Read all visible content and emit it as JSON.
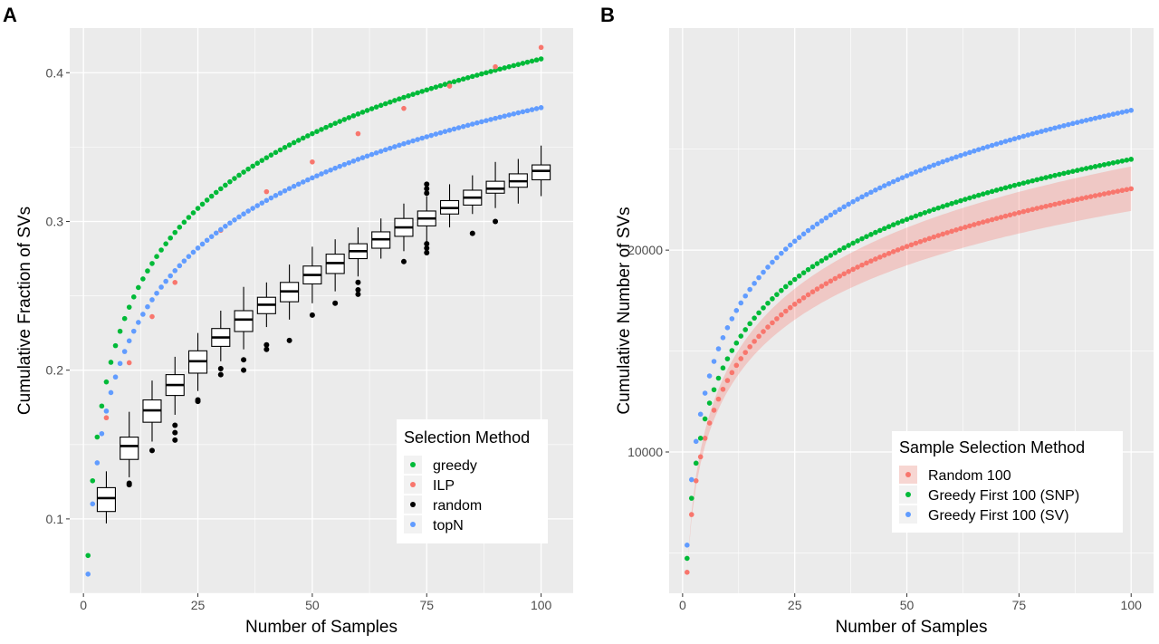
{
  "chart_data": [
    {
      "panel": "A",
      "type": "scatter",
      "title": "",
      "xlabel": "Number of Samples",
      "ylabel": "Cumulative Fraction of SVs",
      "xlim": [
        -3,
        107
      ],
      "ylim": [
        0.05,
        0.43
      ],
      "xticks": [
        0,
        25,
        50,
        75,
        100
      ],
      "yticks": [
        0.1,
        0.2,
        0.3,
        0.4
      ],
      "grid": true,
      "legend": {
        "title": "Selection Method",
        "placement": "bottom-right",
        "entries": [
          {
            "label": "greedy",
            "color": "#00ba38"
          },
          {
            "label": "ILP",
            "color": "#f8766d"
          },
          {
            "label": "random",
            "color": "#000000"
          },
          {
            "label": "topN",
            "color": "#619cff"
          }
        ]
      },
      "series": [
        {
          "name": "greedy",
          "color": "#00ba38",
          "x_start": 1,
          "x_end": 100,
          "curve": {
            "a": 0.0725,
            "b": 0.0754
          }
        },
        {
          "name": "ILP",
          "color": "#f8766d",
          "x": [
            5,
            10,
            15,
            20,
            30,
            40,
            50,
            60,
            70,
            80,
            90,
            100
          ],
          "y": [
            0.168,
            0.205,
            0.236,
            0.259,
            0.294,
            0.32,
            0.34,
            0.359,
            0.376,
            0.391,
            0.404,
            0.417
          ]
        },
        {
          "name": "topN",
          "color": "#619cff",
          "x_start": 1,
          "x_end": 100,
          "curve": {
            "a": 0.0681,
            "b": 0.0629
          }
        }
      ],
      "boxplots": {
        "name": "random",
        "color": "#000000",
        "x": [
          5,
          10,
          15,
          20,
          25,
          30,
          35,
          40,
          45,
          50,
          55,
          60,
          65,
          70,
          75,
          80,
          85,
          90,
          95,
          100
        ],
        "median": [
          0.114,
          0.149,
          0.173,
          0.19,
          0.206,
          0.222,
          0.234,
          0.244,
          0.253,
          0.264,
          0.272,
          0.28,
          0.288,
          0.296,
          0.302,
          0.309,
          0.316,
          0.322,
          0.327,
          0.334
        ],
        "q1": [
          0.105,
          0.14,
          0.165,
          0.183,
          0.198,
          0.216,
          0.226,
          0.238,
          0.246,
          0.258,
          0.265,
          0.275,
          0.282,
          0.29,
          0.297,
          0.305,
          0.311,
          0.319,
          0.323,
          0.328
        ],
        "q3": [
          0.121,
          0.155,
          0.18,
          0.197,
          0.213,
          0.228,
          0.24,
          0.249,
          0.259,
          0.27,
          0.278,
          0.285,
          0.293,
          0.302,
          0.307,
          0.314,
          0.321,
          0.327,
          0.332,
          0.338
        ],
        "low": [
          0.097,
          0.128,
          0.152,
          0.17,
          0.186,
          0.206,
          0.214,
          0.229,
          0.234,
          0.245,
          0.253,
          0.263,
          0.275,
          0.28,
          0.286,
          0.296,
          0.305,
          0.309,
          0.312,
          0.317
        ],
        "high": [
          0.132,
          0.172,
          0.193,
          0.209,
          0.225,
          0.24,
          0.256,
          0.259,
          0.271,
          0.283,
          0.288,
          0.296,
          0.302,
          0.312,
          0.317,
          0.325,
          0.331,
          0.34,
          0.342,
          0.351
        ],
        "outliers": [
          {
            "x": 10,
            "y": [
              0.124,
              0.123
            ]
          },
          {
            "x": 15,
            "y": [
              0.146
            ]
          },
          {
            "x": 20,
            "y": [
              0.163,
              0.158,
              0.153
            ]
          },
          {
            "x": 25,
            "y": [
              0.18,
              0.179
            ]
          },
          {
            "x": 30,
            "y": [
              0.201,
              0.197
            ]
          },
          {
            "x": 35,
            "y": [
              0.207,
              0.2
            ]
          },
          {
            "x": 40,
            "y": [
              0.217,
              0.214
            ]
          },
          {
            "x": 45,
            "y": [
              0.22
            ]
          },
          {
            "x": 50,
            "y": [
              0.237
            ]
          },
          {
            "x": 55,
            "y": [
              0.245
            ]
          },
          {
            "x": 60,
            "y": [
              0.259,
              0.254,
              0.251
            ]
          },
          {
            "x": 70,
            "y": [
              0.273
            ]
          },
          {
            "x": 75,
            "y": [
              0.325,
              0.322,
              0.319,
              0.285,
              0.282,
              0.279
            ]
          },
          {
            "x": 85,
            "y": [
              0.292
            ]
          },
          {
            "x": 90,
            "y": [
              0.3
            ]
          }
        ]
      }
    },
    {
      "panel": "B",
      "type": "scatter",
      "title": "",
      "xlabel": "Number of Samples",
      "ylabel": "Cumulative Number of SVs",
      "xlim": [
        -3,
        105
      ],
      "ylim": [
        3000,
        31000
      ],
      "xticks": [
        0,
        25,
        50,
        75,
        100
      ],
      "yticks": [
        10000,
        20000
      ],
      "grid": true,
      "legend": {
        "title": "Sample Selection Method",
        "placement": "bottom-right",
        "entries": [
          {
            "label": "Random 100",
            "color": "#f8766d"
          },
          {
            "label": "Greedy First 100 (SNP)",
            "color": "#00ba38"
          },
          {
            "label": "Greedy First 100 (SV)",
            "color": "#619cff"
          }
        ]
      },
      "series": [
        {
          "name": "Random 100",
          "color": "#f8766d",
          "x_start": 1,
          "x_end": 100,
          "curve": {
            "a": 4126,
            "b": 4040
          },
          "band_half_width_at_100": 1100
        },
        {
          "name": "Greedy First 100 (SNP)",
          "color": "#00ba38",
          "x_start": 1,
          "x_end": 100,
          "curve": {
            "a": 4293,
            "b": 4730
          }
        },
        {
          "name": "Greedy First 100 (SV)",
          "color": "#619cff",
          "x_start": 1,
          "x_end": 100,
          "curve": {
            "a": 4677,
            "b": 5386
          }
        }
      ]
    }
  ],
  "panels": [
    {
      "letter": "A",
      "legend_title": "Selection Method",
      "legend_labels": [
        "greedy",
        "ILP",
        "random",
        "topN"
      ]
    },
    {
      "letter": "B",
      "legend_title": "Sample Selection Method",
      "legend_labels": [
        "Random 100",
        "Greedy First 100 (SNP)",
        "Greedy First 100 (SV)"
      ]
    }
  ],
  "tick_text": {
    "a_x": [
      "0",
      "25",
      "50",
      "75",
      "100"
    ],
    "a_y": [
      "0.1",
      "0.2",
      "0.3",
      "0.4"
    ],
    "b_x": [
      "0",
      "25",
      "50",
      "75",
      "100"
    ],
    "b_y": [
      "10000",
      "20000"
    ]
  }
}
